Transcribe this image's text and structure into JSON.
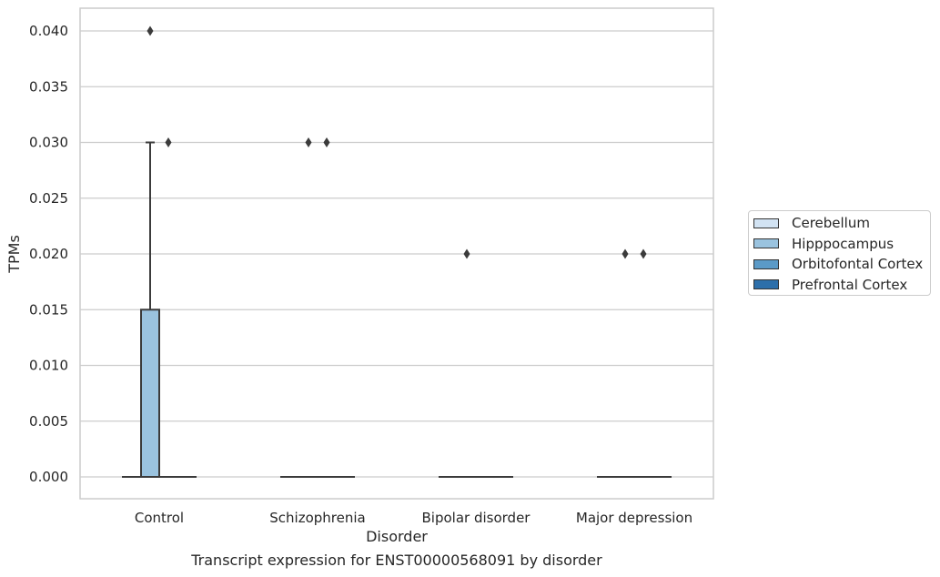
{
  "chart_data": {
    "type": "box",
    "xlabel": "Disorder",
    "ylabel": "TPMs",
    "caption": "Transcript expression for ENST00000568091 by disorder",
    "ylim": [
      -0.002,
      0.042
    ],
    "yticks": [
      "0.000",
      "0.005",
      "0.010",
      "0.015",
      "0.020",
      "0.025",
      "0.030",
      "0.035",
      "0.040"
    ],
    "ytick_values": [
      0,
      0.005,
      0.01,
      0.015,
      0.02,
      0.025,
      0.03,
      0.035,
      0.04
    ],
    "grid": true,
    "legend_position": "right",
    "categories": [
      "Control",
      "Schizophrenia",
      "Bipolar disorder",
      "Major depression"
    ],
    "series": [
      {
        "name": "Cerebellum",
        "color": "#d2e3f3",
        "boxes": [
          {
            "q1": 0,
            "median": 0,
            "q3": 0,
            "whisker_low": 0,
            "whisker_high": 0,
            "outliers": []
          },
          {
            "q1": 0,
            "median": 0,
            "q3": 0,
            "whisker_low": 0,
            "whisker_high": 0,
            "outliers": []
          },
          {
            "q1": 0,
            "median": 0,
            "q3": 0,
            "whisker_low": 0,
            "whisker_high": 0,
            "outliers": []
          },
          {
            "q1": 0,
            "median": 0,
            "q3": 0,
            "whisker_low": 0,
            "whisker_high": 0,
            "outliers": []
          }
        ]
      },
      {
        "name": "Hipppocampus",
        "color": "#9ac3df",
        "boxes": [
          {
            "q1": 0,
            "median": 0,
            "q3": 0.015,
            "whisker_low": 0,
            "whisker_high": 0.03,
            "outliers": [
              0.04
            ]
          },
          {
            "q1": 0,
            "median": 0,
            "q3": 0,
            "whisker_low": 0,
            "whisker_high": 0,
            "outliers": [
              0.03
            ]
          },
          {
            "q1": 0,
            "median": 0,
            "q3": 0,
            "whisker_low": 0,
            "whisker_high": 0,
            "outliers": [
              0.02
            ]
          },
          {
            "q1": 0,
            "median": 0,
            "q3": 0,
            "whisker_low": 0,
            "whisker_high": 0,
            "outliers": [
              0.02
            ]
          }
        ]
      },
      {
        "name": "Orbitofontal Cortex",
        "color": "#5b9ac7",
        "boxes": [
          {
            "q1": 0,
            "median": 0,
            "q3": 0,
            "whisker_low": 0,
            "whisker_high": 0,
            "outliers": [
              0.03
            ]
          },
          {
            "q1": 0,
            "median": 0,
            "q3": 0,
            "whisker_low": 0,
            "whisker_high": 0,
            "outliers": [
              0.03
            ]
          },
          {
            "q1": 0,
            "median": 0,
            "q3": 0,
            "whisker_low": 0,
            "whisker_high": 0,
            "outliers": []
          },
          {
            "q1": 0,
            "median": 0,
            "q3": 0,
            "whisker_low": 0,
            "whisker_high": 0,
            "outliers": [
              0.02
            ]
          }
        ]
      },
      {
        "name": "Prefrontal Cortex",
        "color": "#2d6faa",
        "boxes": [
          {
            "q1": 0,
            "median": 0,
            "q3": 0,
            "whisker_low": 0,
            "whisker_high": 0,
            "outliers": []
          },
          {
            "q1": 0,
            "median": 0,
            "q3": 0,
            "whisker_low": 0,
            "whisker_high": 0,
            "outliers": []
          },
          {
            "q1": 0,
            "median": 0,
            "q3": 0,
            "whisker_low": 0,
            "whisker_high": 0,
            "outliers": []
          },
          {
            "q1": 0,
            "median": 0,
            "q3": 0,
            "whisker_low": 0,
            "whisker_high": 0,
            "outliers": []
          }
        ]
      }
    ]
  }
}
